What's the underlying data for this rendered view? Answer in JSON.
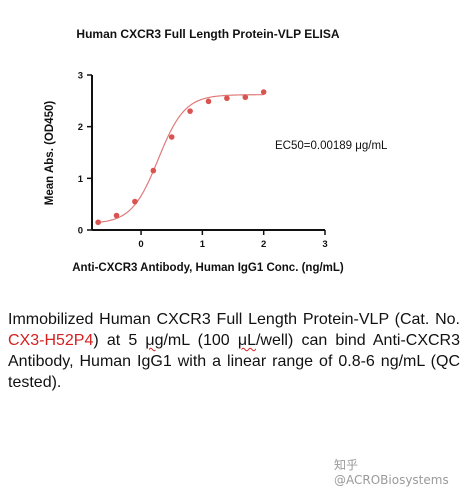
{
  "chart_data": {
    "type": "scatter",
    "title": "Human CXCR3 Full Length Protein-VLP ELISA",
    "xlabel": "Anti-CXCR3 Antibody, Human IgG1 Conc. (ng/mL)",
    "ylabel": "Mean Abs. (OD450)",
    "xlim": [
      -0.8,
      3
    ],
    "ylim": [
      0,
      3
    ],
    "xticks": [
      "0",
      "1",
      "2",
      "3"
    ],
    "yticks": [
      "0",
      "1",
      "2",
      "3"
    ],
    "grid": false,
    "fit": "4-parameter logistic",
    "series": [
      {
        "color": "#d9534f",
        "x": [
          -0.7,
          -0.4,
          -0.1,
          0.2,
          0.5,
          0.8,
          1.1,
          1.4,
          1.7,
          2.0
        ],
        "y": [
          0.15,
          0.28,
          0.55,
          1.15,
          1.8,
          2.3,
          2.49,
          2.55,
          2.57,
          2.67
        ]
      }
    ],
    "annotations": [
      "EC50=0.00189 μg/mL"
    ]
  },
  "description": {
    "prefix": "Immobilized Human CXCR3 Full Length Protein-VLP (Cat. No. ",
    "cat_no": "CX3-H52P4",
    "mid1": ") at 5 ",
    "unit1": "μg",
    "mid2": "/mL (100 ",
    "unit2": "μL",
    "suffix": "/well) can bind Anti-CXCR3 Antibody, Human IgG1 with a linear range of 0.8-6 ng/mL (QC tested)."
  },
  "watermark": "知乎 @ACROBiosystems"
}
